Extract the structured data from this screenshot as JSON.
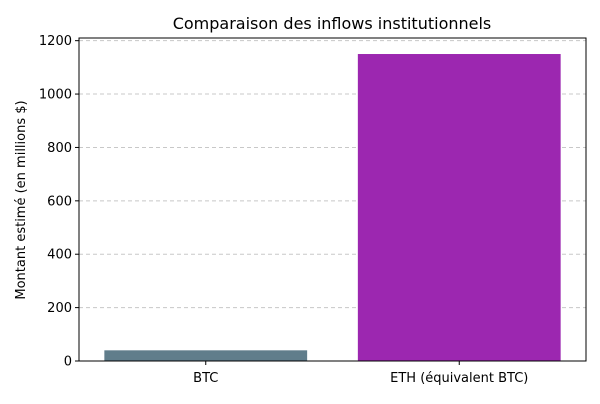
{
  "chart_data": {
    "type": "bar",
    "title": "Comparaison des inflows institutionnels",
    "xlabel": "",
    "ylabel": "Montant estimé (en millions $)",
    "categories": [
      "BTC",
      "ETH (équivalent BTC)"
    ],
    "values": [
      40,
      1150
    ],
    "colors": [
      "#607d8b",
      "#9c27b0"
    ],
    "ylim": [
      0,
      1210
    ],
    "yticks": [
      0,
      200,
      400,
      600,
      800,
      1000,
      1200
    ],
    "grid": "horizontal dashed",
    "legend": "none"
  }
}
